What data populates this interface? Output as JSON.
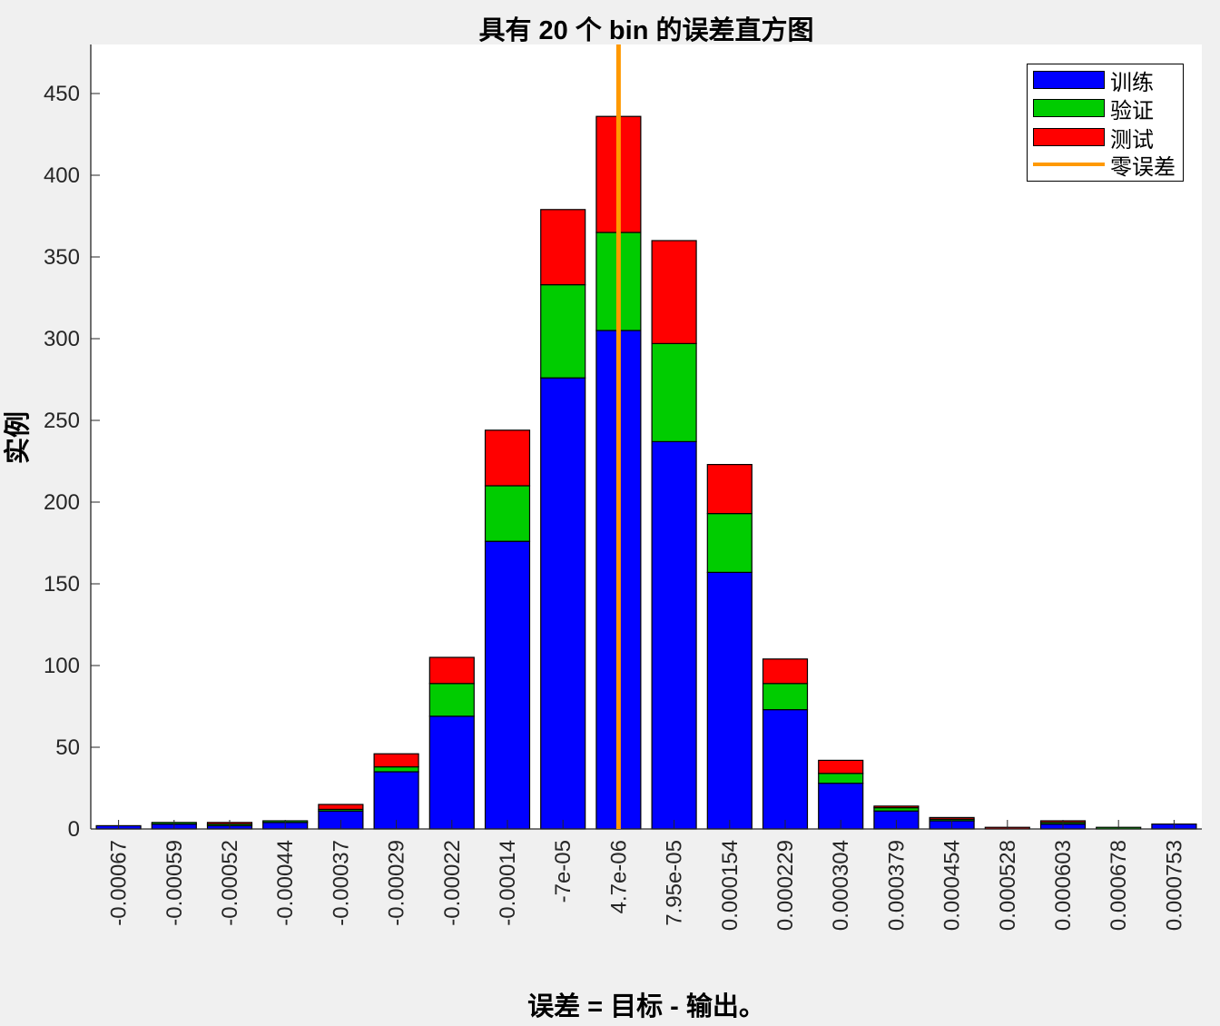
{
  "chart_data": {
    "type": "bar",
    "stacked": true,
    "title": "具有 20 个 bin 的误差直方图",
    "xlabel": "误差 = 目标 - 输出。",
    "ylabel": "实例",
    "ylim": [
      0,
      480
    ],
    "yticks": [
      0,
      50,
      100,
      150,
      200,
      250,
      300,
      350,
      400,
      450
    ],
    "categories": [
      "-0.00067",
      "-0.00059",
      "-0.00052",
      "-0.00044",
      "-0.00037",
      "-0.00029",
      "-0.00022",
      "-0.00014",
      "-7e-05",
      "4.7e-06",
      "7.95e-05",
      "0.000154",
      "0.000229",
      "0.000304",
      "0.000379",
      "0.000454",
      "0.000528",
      "0.000603",
      "0.000678",
      "0.000753"
    ],
    "series": [
      {
        "name": "训练",
        "color": "#0000ff",
        "values": [
          2,
          3,
          2,
          4,
          11,
          35,
          69,
          176,
          276,
          305,
          237,
          157,
          73,
          28,
          11,
          5,
          0,
          3,
          0,
          3
        ]
      },
      {
        "name": "验证",
        "color": "#00cc00",
        "values": [
          0,
          1,
          1,
          1,
          1,
          3,
          20,
          34,
          57,
          60,
          60,
          36,
          16,
          6,
          2,
          1,
          0,
          1,
          1,
          0
        ]
      },
      {
        "name": "测试",
        "color": "#ff0000",
        "values": [
          0,
          0,
          1,
          0,
          3,
          8,
          16,
          34,
          46,
          71,
          63,
          30,
          15,
          8,
          1,
          1,
          1,
          1,
          0,
          0
        ]
      }
    ],
    "reference_line": {
      "name": "零误差",
      "color": "#ff9900",
      "x_category": "4.7e-06"
    },
    "legend_position": "top-right",
    "grid": false
  }
}
